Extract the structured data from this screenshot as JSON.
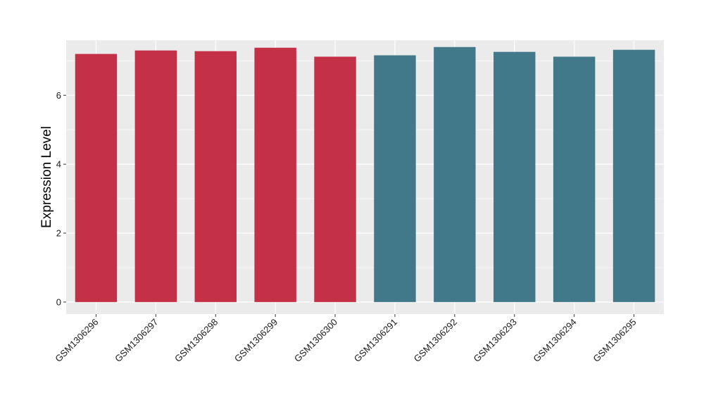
{
  "chart_data": {
    "type": "bar",
    "title": "",
    "xlabel": "",
    "ylabel": "Expression Level",
    "ylim": [
      -0.35,
      7.6
    ],
    "y_ticks": [
      0,
      2,
      4,
      6
    ],
    "grid": true,
    "categories": [
      "GSM1306296",
      "GSM1306297",
      "GSM1306298",
      "GSM1306299",
      "GSM1306300",
      "GSM1306291",
      "GSM1306292",
      "GSM1306293",
      "GSM1306294",
      "GSM1306295"
    ],
    "values": [
      7.2,
      7.3,
      7.28,
      7.38,
      7.12,
      7.16,
      7.4,
      7.26,
      7.12,
      7.32
    ],
    "bar_colors": [
      "#c43046",
      "#c43046",
      "#c43046",
      "#c43046",
      "#c43046",
      "#42798a",
      "#42798a",
      "#42798a",
      "#42798a",
      "#42798a"
    ],
    "panel_background": "#ebebeb",
    "grid_color": "#ffffff"
  }
}
